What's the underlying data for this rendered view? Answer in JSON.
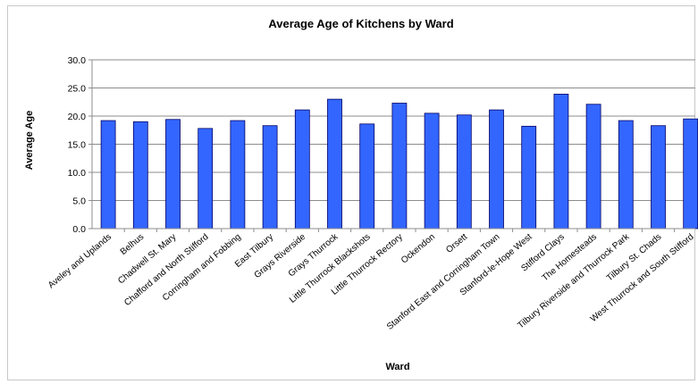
{
  "chart_data": {
    "type": "bar",
    "title": "Average Age of Kitchens by Ward",
    "xlabel": "Ward",
    "ylabel": "Average Age",
    "ylim": [
      0,
      30
    ],
    "yticks": [
      "0.0",
      "5.0",
      "10.0",
      "15.0",
      "20.0",
      "25.0",
      "30.0"
    ],
    "grid": true,
    "bar_color": "#3366ff",
    "categories": [
      "Aveley and Uplands",
      "Belhus",
      "Chadwell St. Mary",
      "Chafford and North Stifford",
      "Corringham and Fobbing",
      "East Tilbury",
      "Grays Riverside",
      "Grays Thurrock",
      "Little Thurrock Blackshots",
      "Little Thurrock Rectory",
      "Ockendon",
      "Orsett",
      "Stanford East and Corringham Town",
      "Stanford-le-Hope West",
      "Stifford Clays",
      "The Homesteads",
      "Tilbury Riverside and Thurrock Park",
      "Tilbury St. Chads",
      "West Thurrock and South Stifford"
    ],
    "values": [
      19.2,
      19.0,
      19.4,
      17.8,
      19.2,
      18.3,
      21.1,
      23.0,
      18.6,
      22.3,
      20.5,
      20.2,
      21.1,
      18.2,
      23.9,
      22.1,
      19.2,
      18.3,
      19.5
    ]
  }
}
